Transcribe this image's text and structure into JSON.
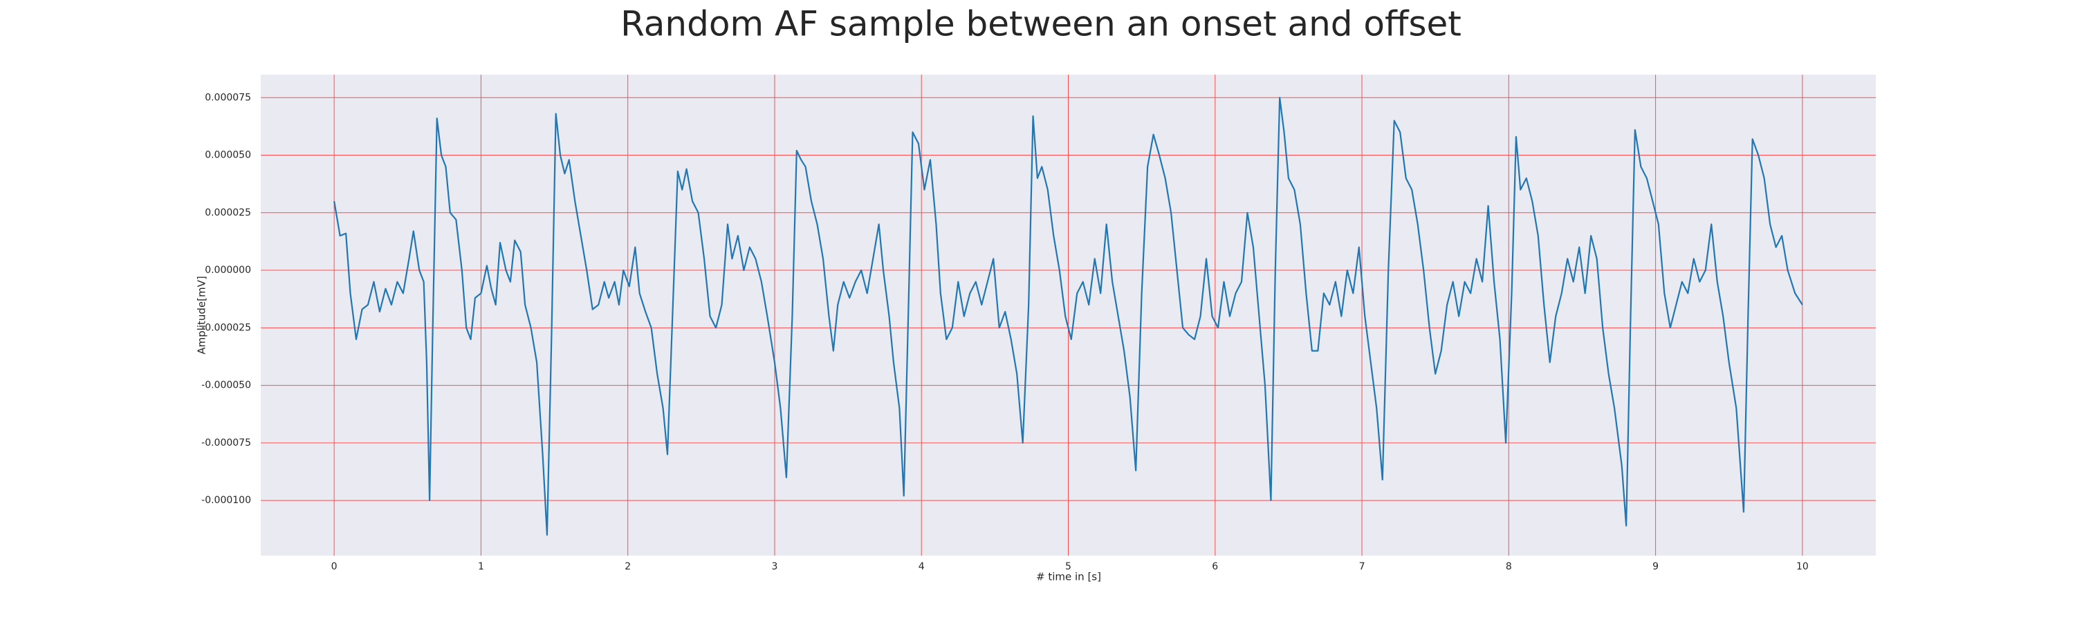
{
  "chart_data": {
    "type": "line",
    "title": "Random AF sample between an onset and offset",
    "xlabel": "# time in [s]",
    "ylabel": "Amplitude[mV]",
    "color": "#1f77b4",
    "grid": true,
    "grid_color": "#ff4d4d",
    "background": "#eaeaf2",
    "xlim": [
      -0.5,
      10.5
    ],
    "ylim": [
      -0.000124,
      8.5e-05
    ],
    "xticks": [
      0,
      1,
      2,
      3,
      4,
      5,
      6,
      7,
      8,
      9,
      10
    ],
    "yticks": [
      {
        "value": 7.5e-05,
        "label": "0.000075"
      },
      {
        "value": 5e-05,
        "label": "0.000050"
      },
      {
        "value": 2.5e-05,
        "label": "0.000025"
      },
      {
        "value": 0,
        "label": "0.000000"
      },
      {
        "value": -2.5e-05,
        "label": "-0.000025"
      },
      {
        "value": -5e-05,
        "label": "-0.000050"
      },
      {
        "value": -7.5e-05,
        "label": "-0.000075"
      },
      {
        "value": -0.0001,
        "label": "-0.000100"
      }
    ],
    "x": [
      0.0,
      0.04,
      0.08,
      0.11,
      0.15,
      0.19,
      0.23,
      0.27,
      0.31,
      0.35,
      0.39,
      0.43,
      0.47,
      0.51,
      0.54,
      0.58,
      0.61,
      0.63,
      0.65,
      0.67,
      0.7,
      0.73,
      0.76,
      0.79,
      0.83,
      0.87,
      0.9,
      0.93,
      0.96,
      1.0,
      1.04,
      1.07,
      1.1,
      1.13,
      1.17,
      1.2,
      1.23,
      1.27,
      1.3,
      1.34,
      1.38,
      1.42,
      1.45,
      1.48,
      1.51,
      1.54,
      1.57,
      1.6,
      1.64,
      1.68,
      1.72,
      1.76,
      1.8,
      1.84,
      1.87,
      1.91,
      1.94,
      1.97,
      2.01,
      2.05,
      2.08,
      2.12,
      2.16,
      2.2,
      2.24,
      2.27,
      2.31,
      2.34,
      2.37,
      2.4,
      2.44,
      2.48,
      2.52,
      2.56,
      2.6,
      2.64,
      2.68,
      2.71,
      2.75,
      2.79,
      2.83,
      2.87,
      2.91,
      2.95,
      3.0,
      3.04,
      3.08,
      3.12,
      3.15,
      3.18,
      3.21,
      3.25,
      3.29,
      3.33,
      3.37,
      3.4,
      3.43,
      3.47,
      3.51,
      3.55,
      3.59,
      3.63,
      3.67,
      3.71,
      3.74,
      3.78,
      3.81,
      3.85,
      3.88,
      3.91,
      3.94,
      3.98,
      4.02,
      4.06,
      4.1,
      4.13,
      4.17,
      4.21,
      4.25,
      4.29,
      4.33,
      4.37,
      4.41,
      4.45,
      4.49,
      4.53,
      4.57,
      4.61,
      4.65,
      4.69,
      4.73,
      4.76,
      4.79,
      4.82,
      4.86,
      4.9,
      4.94,
      4.98,
      5.02,
      5.06,
      5.1,
      5.14,
      5.18,
      5.22,
      5.26,
      5.3,
      5.34,
      5.38,
      5.42,
      5.46,
      5.5,
      5.54,
      5.58,
      5.62,
      5.66,
      5.7,
      5.74,
      5.78,
      5.82,
      5.86,
      5.9,
      5.94,
      5.98,
      6.02,
      6.06,
      6.1,
      6.14,
      6.18,
      6.22,
      6.26,
      6.3,
      6.34,
      6.38,
      6.41,
      6.44,
      6.47,
      6.5,
      6.54,
      6.58,
      6.62,
      6.66,
      6.7,
      6.74,
      6.78,
      6.82,
      6.86,
      6.9,
      6.94,
      6.98,
      7.02,
      7.06,
      7.1,
      7.14,
      7.18,
      7.22,
      7.26,
      7.3,
      7.34,
      7.38,
      7.42,
      7.46,
      7.5,
      7.54,
      7.58,
      7.62,
      7.66,
      7.7,
      7.74,
      7.78,
      7.82,
      7.86,
      7.9,
      7.94,
      7.98,
      8.02,
      8.05,
      8.08,
      8.12,
      8.16,
      8.2,
      8.24,
      8.28,
      8.32,
      8.36,
      8.4,
      8.44,
      8.48,
      8.52,
      8.56,
      8.6,
      8.64,
      8.68,
      8.72,
      8.77,
      8.8,
      8.83,
      8.86,
      8.9,
      8.94,
      8.98,
      9.02,
      9.06,
      9.1,
      9.14,
      9.18,
      9.22,
      9.26,
      9.3,
      9.34,
      9.38,
      9.42,
      9.46,
      9.5,
      9.55,
      9.6,
      9.63,
      9.66,
      9.7,
      9.74,
      9.78,
      9.82,
      9.86,
      9.9,
      9.95,
      10.0
    ],
    "values": [
      3e-05,
      1.5e-05,
      1.6e-05,
      -1e-05,
      -3e-05,
      -1.7e-05,
      -1.5e-05,
      -5e-06,
      -1.8e-05,
      -8e-06,
      -1.5e-05,
      -5e-06,
      -1e-05,
      5e-06,
      1.7e-05,
      0,
      -5e-06,
      -4e-05,
      -0.0001,
      -3e-05,
      6.6e-05,
      5e-05,
      4.5e-05,
      2.5e-05,
      2.2e-05,
      0,
      -2.5e-05,
      -3e-05,
      -1.2e-05,
      -1e-05,
      2e-06,
      -8e-06,
      -1.5e-05,
      1.2e-05,
      0,
      -5e-06,
      1.3e-05,
      8e-06,
      -1.5e-05,
      -2.5e-05,
      -4e-05,
      -8e-05,
      -0.000115,
      -3e-05,
      6.8e-05,
      5e-05,
      4.2e-05,
      4.8e-05,
      3e-05,
      1.5e-05,
      0,
      -1.7e-05,
      -1.5e-05,
      -5e-06,
      -1.2e-05,
      -5e-06,
      -1.5e-05,
      0,
      -7e-06,
      1e-05,
      -1e-05,
      -1.8e-05,
      -2.5e-05,
      -4.5e-05,
      -6e-05,
      -8e-05,
      -1e-05,
      4.3e-05,
      3.5e-05,
      4.4e-05,
      3e-05,
      2.5e-05,
      5e-06,
      -2e-05,
      -2.5e-05,
      -1.5e-05,
      2e-05,
      5e-06,
      1.5e-05,
      0,
      1e-05,
      5e-06,
      -5e-06,
      -2e-05,
      -4e-05,
      -6e-05,
      -9e-05,
      -2e-05,
      5.2e-05,
      4.8e-05,
      4.5e-05,
      3e-05,
      2e-05,
      5e-06,
      -2e-05,
      -3.5e-05,
      -1.5e-05,
      -5e-06,
      -1.2e-05,
      -5e-06,
      0,
      -1e-05,
      5e-06,
      2e-05,
      0,
      -2e-05,
      -4e-05,
      -6e-05,
      -9.8e-05,
      -2e-05,
      6e-05,
      5.5e-05,
      3.5e-05,
      4.8e-05,
      2e-05,
      -1e-05,
      -3e-05,
      -2.5e-05,
      -5e-06,
      -2e-05,
      -1e-05,
      -5e-06,
      -1.5e-05,
      -5e-06,
      5e-06,
      -2.5e-05,
      -1.8e-05,
      -3e-05,
      -4.5e-05,
      -7.5e-05,
      -1.5e-05,
      6.7e-05,
      4e-05,
      4.5e-05,
      3.5e-05,
      1.5e-05,
      0,
      -2e-05,
      -3e-05,
      -1e-05,
      -5e-06,
      -1.5e-05,
      5e-06,
      -1e-05,
      2e-05,
      -5e-06,
      -2e-05,
      -3.5e-05,
      -5.5e-05,
      -8.7e-05,
      -1e-05,
      4.5e-05,
      5.9e-05,
      5e-05,
      4e-05,
      2.5e-05,
      0,
      -2.5e-05,
      -2.8e-05,
      -3e-05,
      -2e-05,
      5e-06,
      -2e-05,
      -2.5e-05,
      -5e-06,
      -2e-05,
      -1e-05,
      -5e-06,
      2.5e-05,
      1e-05,
      -2e-05,
      -5e-05,
      -0.0001,
      0,
      7.5e-05,
      6e-05,
      4e-05,
      3.5e-05,
      2e-05,
      -1e-05,
      -3.5e-05,
      -3.5e-05,
      -1e-05,
      -1.5e-05,
      -5e-06,
      -2e-05,
      0,
      -1e-05,
      1e-05,
      -2e-05,
      -4e-05,
      -6e-05,
      -9.1e-05,
      0,
      6.5e-05,
      6e-05,
      4e-05,
      3.5e-05,
      2e-05,
      0,
      -2.5e-05,
      -4.5e-05,
      -3.5e-05,
      -1.5e-05,
      -5e-06,
      -2e-05,
      -5e-06,
      -1e-05,
      5e-06,
      -5e-06,
      2.8e-05,
      -5e-06,
      -3e-05,
      -7.5e-05,
      -1e-05,
      5.8e-05,
      3.5e-05,
      4e-05,
      3e-05,
      1.5e-05,
      -1.5e-05,
      -4e-05,
      -2e-05,
      -1e-05,
      5e-06,
      -5e-06,
      1e-05,
      -1e-05,
      1.5e-05,
      5e-06,
      -2.5e-05,
      -4.5e-05,
      -6e-05,
      -8.5e-05,
      -0.000111,
      -2e-05,
      6.1e-05,
      4.5e-05,
      4e-05,
      3e-05,
      2e-05,
      -1e-05,
      -2.5e-05,
      -1.5e-05,
      -5e-06,
      -1e-05,
      5e-06,
      -5e-06,
      0,
      2e-05,
      -5e-06,
      -2e-05,
      -4e-05,
      -6e-05,
      -0.000105,
      -2e-05,
      5.7e-05,
      5e-05,
      4e-05,
      2e-05,
      1e-05,
      1.5e-05,
      0,
      -1e-05,
      -1.5e-05
    ]
  }
}
